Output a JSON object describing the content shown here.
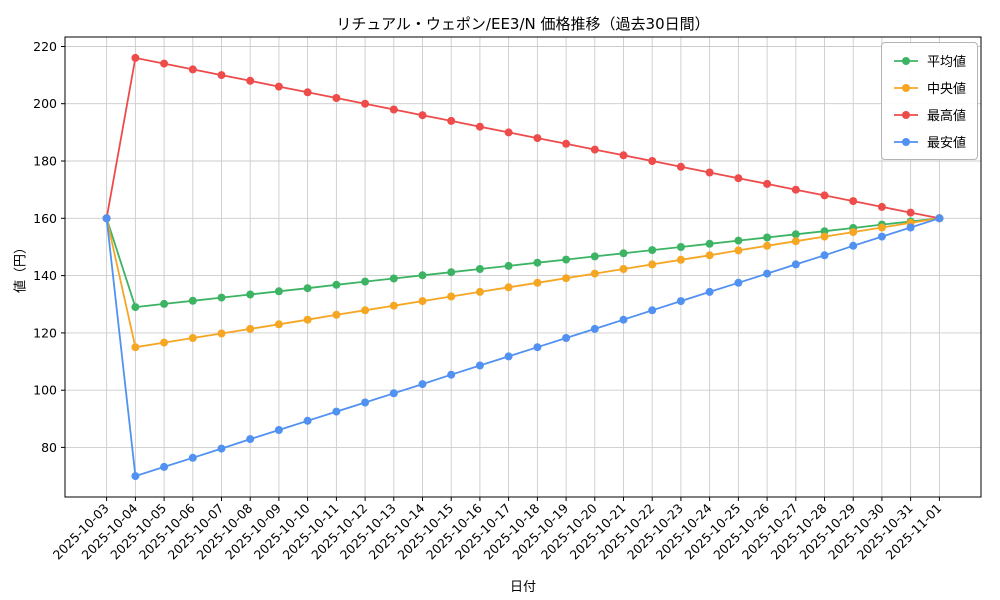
{
  "chart_data": {
    "type": "line",
    "title": "リチュアル・ウェポン/EE3/N 価格推移（過去30日間）",
    "xlabel": "日付",
    "ylabel": "値（円）",
    "grid": true,
    "legend_position": "upper right",
    "ylim": [
      62.7,
      223.3
    ],
    "y_ticks": [
      80,
      100,
      120,
      140,
      160,
      180,
      200,
      220
    ],
    "x": [
      "2025-10-03",
      "2025-10-04",
      "2025-10-05",
      "2025-10-06",
      "2025-10-07",
      "2025-10-08",
      "2025-10-09",
      "2025-10-10",
      "2025-10-11",
      "2025-10-12",
      "2025-10-13",
      "2025-10-14",
      "2025-10-15",
      "2025-10-16",
      "2025-10-17",
      "2025-10-18",
      "2025-10-19",
      "2025-10-20",
      "2025-10-21",
      "2025-10-22",
      "2025-10-23",
      "2025-10-24",
      "2025-10-25",
      "2025-10-26",
      "2025-10-27",
      "2025-10-28",
      "2025-10-29",
      "2025-10-30",
      "2025-10-31",
      "2025-11-01"
    ],
    "series": [
      {
        "name": "平均値",
        "color": "#3cb464",
        "values": [
          160,
          129,
          130.1,
          131.2,
          132.3,
          133.4,
          134.5,
          135.6,
          136.8,
          137.9,
          139,
          140.1,
          141.2,
          142.3,
          143.4,
          144.5,
          145.6,
          146.7,
          147.8,
          148.9,
          150,
          151.1,
          152.2,
          153.3,
          154.4,
          155.5,
          156.6,
          157.8,
          158.9,
          160
        ]
      },
      {
        "name": "中央値",
        "color": "#f5a623",
        "values": [
          160,
          115,
          116.6,
          118.2,
          119.8,
          121.4,
          123,
          124.6,
          126.3,
          127.9,
          129.5,
          131.1,
          132.7,
          134.3,
          135.9,
          137.5,
          139.1,
          140.7,
          142.3,
          143.9,
          145.5,
          147.1,
          148.8,
          150.4,
          152,
          153.6,
          155.2,
          156.8,
          158.4,
          160
        ]
      },
      {
        "name": "最高値",
        "color": "#ee4b4b",
        "values": [
          160,
          216,
          214,
          212,
          210,
          208,
          206,
          204,
          202,
          200,
          198,
          196,
          194,
          192,
          190,
          188,
          186,
          184,
          182,
          180,
          178,
          176,
          174,
          172,
          170,
          168,
          166,
          164,
          162,
          160
        ]
      },
      {
        "name": "最安値",
        "color": "#5191f1",
        "values": [
          160,
          70,
          73.2,
          76.4,
          79.6,
          82.9,
          86.1,
          89.3,
          92.5,
          95.7,
          98.9,
          102.1,
          105.4,
          108.6,
          111.8,
          115,
          118.2,
          121.4,
          124.6,
          127.9,
          131.1,
          134.3,
          137.5,
          140.7,
          143.9,
          147.1,
          150.4,
          153.6,
          156.8,
          160
        ]
      }
    ]
  }
}
